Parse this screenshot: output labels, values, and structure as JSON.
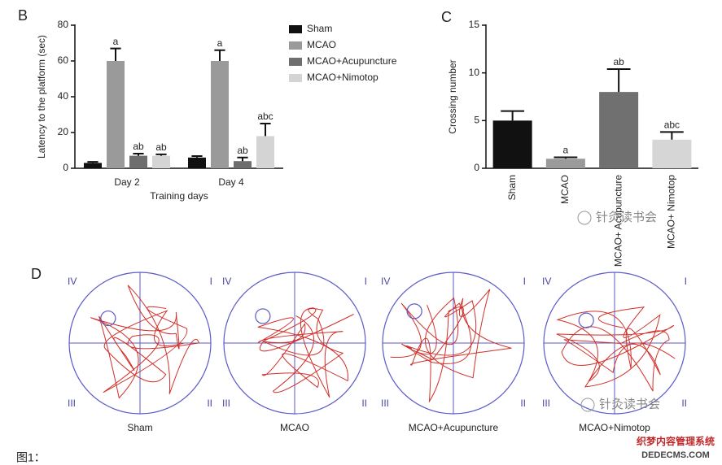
{
  "chart_data": [
    {
      "type": "bar",
      "panel_label": "B",
      "categories": [
        "Day 2",
        "Day 4"
      ],
      "series": [
        {
          "name": "Sham",
          "color": "#111111",
          "values": [
            3,
            6
          ],
          "errors": [
            0.6,
            0.8
          ],
          "labels": [
            null,
            null
          ]
        },
        {
          "name": "MCAO",
          "color": "#9a9a9a",
          "values": [
            60,
            60
          ],
          "errors": [
            7,
            6
          ],
          "labels": [
            "a",
            "a"
          ]
        },
        {
          "name": "MCAO+Acupuncture",
          "color": "#6e6e6e",
          "values": [
            7,
            4
          ],
          "errors": [
            1.2,
            2
          ],
          "labels": [
            "ab",
            "ab"
          ]
        },
        {
          "name": "MCAO+Nimotop",
          "color": "#d4d4d4",
          "values": [
            7,
            18
          ],
          "errors": [
            0.8,
            7
          ],
          "labels": [
            "ab",
            "abc"
          ]
        }
      ],
      "xlabel": "Training days",
      "ylabel": "Latency to the platform (sec)",
      "ylim": [
        0,
        80
      ],
      "yticks": [
        0,
        20,
        40,
        60,
        80
      ],
      "legend": "right"
    },
    {
      "type": "bar",
      "panel_label": "C",
      "categories": [
        "Sham",
        "MCAO",
        "MCAO+ Acupuncture",
        "MCAO+ Nimotop"
      ],
      "values": [
        5,
        1,
        8,
        3
      ],
      "errors": [
        1,
        0.15,
        2.4,
        0.8
      ],
      "labels": [
        null,
        "a",
        "ab",
        "abc"
      ],
      "colors": [
        "#111111",
        "#9a9a9a",
        "#707070",
        "#d6d6d6"
      ],
      "ylabel": "Crossing number",
      "x_tick_rotation": -90,
      "ylim": [
        0,
        15
      ],
      "yticks": [
        0,
        5,
        10,
        15
      ]
    }
  ],
  "panel_d": {
    "label": "D",
    "quadrants": [
      "IV",
      "I",
      "III",
      "II"
    ],
    "groups": [
      "Sham",
      "MCAO",
      "MCAO+Acupuncture",
      "MCAO+Nimotop"
    ]
  },
  "caption": "图1：",
  "watermarks": [
    "针灸读书会",
    "针灸读书会",
    "织梦内容管理系统",
    "DEDECMS.COM"
  ]
}
